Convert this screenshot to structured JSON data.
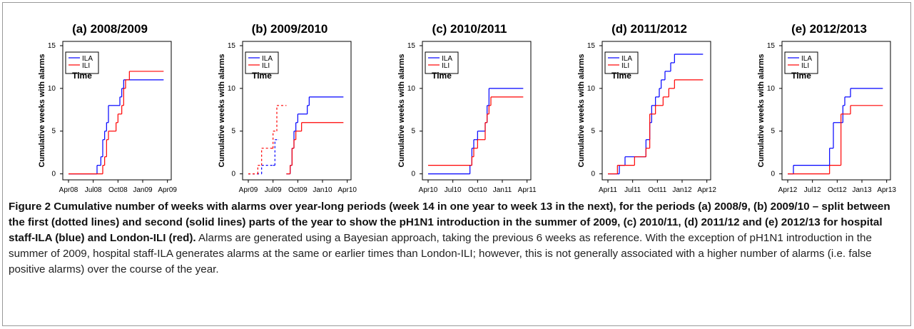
{
  "chart_data": [
    {
      "type": "line",
      "title": "(a) 2008/2009",
      "x_label": "Time",
      "y_label": "Cumulative weeks with alarms",
      "step": "post",
      "xlim": [
        -3,
        54
      ],
      "xticks": [
        {
          "value": 0,
          "label": "Apr08"
        },
        {
          "value": 13,
          "label": "Jul08"
        },
        {
          "value": 26,
          "label": "Oct08"
        },
        {
          "value": 39,
          "label": "Jan09"
        },
        {
          "value": 52,
          "label": "Apr09"
        }
      ],
      "ylim": [
        -0.7,
        15.5
      ],
      "yticks": [
        0,
        5,
        10,
        15
      ],
      "legend": "top-left",
      "series": [
        {
          "name": "ILA",
          "color": "#0000ff",
          "dash": false,
          "x": [
            0,
            15,
            17,
            18,
            19,
            20,
            21,
            27,
            28,
            29,
            50
          ],
          "values": [
            0,
            1,
            2,
            4,
            5,
            6,
            8,
            9,
            10,
            11,
            11
          ]
        },
        {
          "name": "ILI",
          "color": "#ff0000",
          "dash": false,
          "x": [
            0,
            18,
            19,
            20,
            21,
            25,
            26,
            28,
            29,
            30,
            32,
            50
          ],
          "values": [
            0,
            1,
            2,
            4,
            5,
            6,
            7,
            8,
            10,
            11,
            12,
            12
          ]
        }
      ]
    },
    {
      "type": "line",
      "title": "(b) 2009/2010",
      "x_label": "Time",
      "y_label": "Cumulative weeks with alarms",
      "step": "post",
      "xlim": [
        -3,
        54
      ],
      "xticks": [
        {
          "value": 0,
          "label": "Apr09"
        },
        {
          "value": 13,
          "label": "Jul09"
        },
        {
          "value": 26,
          "label": "Oct09"
        },
        {
          "value": 39,
          "label": "Jan10"
        },
        {
          "value": 52,
          "label": "Apr10"
        }
      ],
      "ylim": [
        -0.7,
        15.5
      ],
      "yticks": [
        0,
        5,
        10,
        15
      ],
      "legend": "top-left",
      "series": [
        {
          "name": "ILA",
          "color": "#0000ff",
          "dash": true,
          "x": [
            0,
            7,
            13,
            14,
            16
          ],
          "values": [
            0,
            1,
            1,
            4,
            4
          ]
        },
        {
          "name": "ILI",
          "color": "#ff0000",
          "dash": true,
          "x": [
            0,
            5,
            7,
            12,
            13,
            15,
            20
          ],
          "values": [
            0,
            1,
            3,
            3,
            5,
            8,
            8
          ]
        },
        {
          "name": "ILA",
          "color": "#0000ff",
          "dash": false,
          "x": [
            20,
            22,
            23,
            24,
            25,
            26,
            31,
            32,
            50
          ],
          "values": [
            0,
            1,
            3,
            5,
            6,
            7,
            8,
            9,
            9
          ]
        },
        {
          "name": "ILI",
          "color": "#ff0000",
          "dash": false,
          "x": [
            20,
            22,
            23,
            24,
            25,
            28,
            50
          ],
          "values": [
            0,
            1,
            3,
            4,
            5,
            6,
            6
          ]
        }
      ]
    },
    {
      "type": "line",
      "title": "(c) 2010/2011",
      "x_label": "Time",
      "y_label": "Cumulative weeks with alarms",
      "step": "post",
      "xlim": [
        -3,
        54
      ],
      "xticks": [
        {
          "value": 0,
          "label": "Apr10"
        },
        {
          "value": 13,
          "label": "Jul10"
        },
        {
          "value": 26,
          "label": "Oct10"
        },
        {
          "value": 39,
          "label": "Jan11"
        },
        {
          "value": 52,
          "label": "Apr11"
        }
      ],
      "ylim": [
        -0.7,
        15.5
      ],
      "yticks": [
        0,
        5,
        10,
        15
      ],
      "legend": "top-left",
      "series": [
        {
          "name": "ILA",
          "color": "#0000ff",
          "dash": false,
          "x": [
            0,
            22,
            23,
            24,
            25,
            26,
            30,
            31,
            32,
            50
          ],
          "values": [
            0,
            1,
            3,
            4,
            4,
            5,
            6,
            8,
            10,
            10
          ]
        },
        {
          "name": "ILI",
          "color": "#ff0000",
          "dash": false,
          "x": [
            0,
            23,
            24,
            26,
            30,
            31,
            32,
            33,
            50
          ],
          "values": [
            1,
            2,
            3,
            4,
            6,
            7,
            8,
            9,
            9
          ]
        }
      ]
    },
    {
      "type": "line",
      "title": "(d) 2011/2012",
      "x_label": "Time",
      "y_label": "Cumulative weeks with alarms",
      "step": "post",
      "xlim": [
        -3,
        54
      ],
      "xticks": [
        {
          "value": 0,
          "label": "Apr11"
        },
        {
          "value": 13,
          "label": "Jul11"
        },
        {
          "value": 26,
          "label": "Oct11"
        },
        {
          "value": 39,
          "label": "Jan12"
        },
        {
          "value": 52,
          "label": "Apr12"
        }
      ],
      "ylim": [
        -0.7,
        15.5
      ],
      "yticks": [
        0,
        5,
        10,
        15
      ],
      "legend": "top-left",
      "series": [
        {
          "name": "ILA",
          "color": "#0000ff",
          "dash": false,
          "x": [
            0,
            6,
            9,
            20,
            22,
            23,
            25,
            27,
            28,
            30,
            33,
            35,
            50
          ],
          "values": [
            0,
            1,
            2,
            4,
            6,
            8,
            9,
            10,
            11,
            12,
            13,
            14,
            14
          ]
        },
        {
          "name": "ILI",
          "color": "#ff0000",
          "dash": false,
          "x": [
            0,
            5,
            14,
            20,
            22,
            25,
            29,
            32,
            35,
            50
          ],
          "values": [
            0,
            1,
            2,
            3,
            7,
            8,
            9,
            10,
            11,
            11
          ]
        }
      ]
    },
    {
      "type": "line",
      "title": "(e) 2012/2013",
      "x_label": "Time",
      "y_label": "Cumulative weeks with alarms",
      "step": "post",
      "xlim": [
        -3,
        54
      ],
      "xticks": [
        {
          "value": 0,
          "label": "Apr12"
        },
        {
          "value": 13,
          "label": "Jul12"
        },
        {
          "value": 26,
          "label": "Oct12"
        },
        {
          "value": 39,
          "label": "Jan13"
        },
        {
          "value": 52,
          "label": "Apr13"
        }
      ],
      "ylim": [
        -0.7,
        15.5
      ],
      "yticks": [
        0,
        5,
        10,
        15
      ],
      "legend": "top-left",
      "series": [
        {
          "name": "ILA",
          "color": "#0000ff",
          "dash": false,
          "x": [
            0,
            3,
            22,
            24,
            29,
            30,
            33,
            50
          ],
          "values": [
            0,
            1,
            3,
            6,
            8,
            9,
            10,
            10
          ]
        },
        {
          "name": "ILI",
          "color": "#ff0000",
          "dash": false,
          "x": [
            0,
            22,
            28,
            32,
            33,
            50
          ],
          "values": [
            0,
            1,
            7,
            7,
            8,
            8
          ]
        }
      ]
    }
  ],
  "caption": {
    "bold": "Figure 2 Cumulative number of weeks with alarms over year-long periods (week 14 in one year to week 13 in the next), for the periods (a) 2008/9, (b) 2009/10 – split between the first (dotted lines) and second (solid lines) parts of the year to show the pH1N1 introduction in the summer of 2009, (c) 2010/11, (d) 2011/12 and (e) 2012/13 for hospital staff-ILA (blue) and London-ILI (red).",
    "text": " Alarms are generated using a Bayesian approach, taking the previous 6 weeks as reference. With the exception of pH1N1 introduction in the summer of 2009, hospital staff-ILA generates alarms at the same or earlier times than London-ILI; however, this is not generally associated with a higher number of alarms (i.e. false positive alarms) over the course of the year."
  }
}
